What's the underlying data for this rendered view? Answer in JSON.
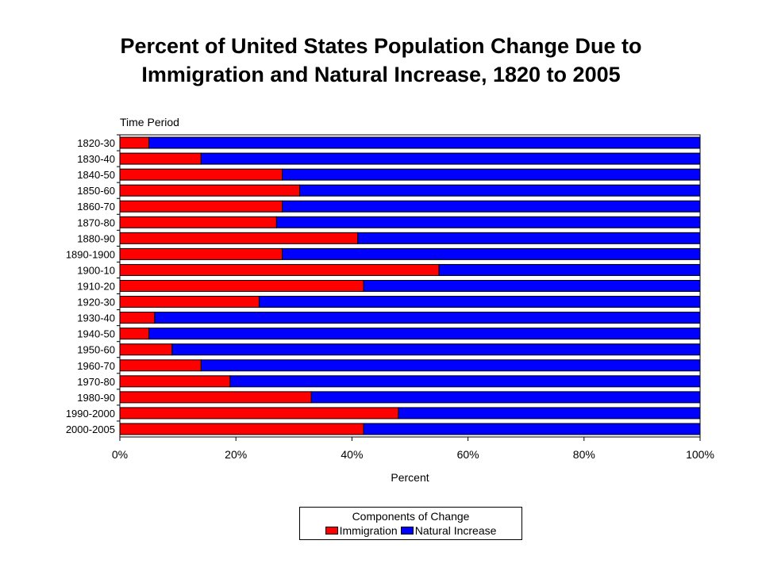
{
  "chart_data": {
    "type": "bar",
    "orientation": "horizontal",
    "stacked": "percent",
    "title_line1": "Percent of United States Population Change Due to",
    "title_line2": "Immigration and Natural Increase, 1820 to 2005",
    "ylabel": "Time Period",
    "xlabel": "Percent",
    "xlim": [
      0,
      100
    ],
    "x_ticks": [
      "0%",
      "20%",
      "40%",
      "60%",
      "80%",
      "100%"
    ],
    "x_tick_values": [
      0,
      20,
      40,
      60,
      80,
      100
    ],
    "grid": false,
    "legend_title": "Components of Change",
    "legend_position": "bottom-center",
    "categories": [
      "1820-30",
      "1830-40",
      "1840-50",
      "1850-60",
      "1860-70",
      "1870-80",
      "1880-90",
      "1890-1900",
      "1900-10",
      "1910-20",
      "1920-30",
      "1930-40",
      "1940-50",
      "1950-60",
      "1960-70",
      "1970-80",
      "1980-90",
      "1990-2000",
      "2000-2005"
    ],
    "series": [
      {
        "name": "Immigration",
        "color": "#ff0000",
        "values": [
          5,
          14,
          28,
          31,
          28,
          27,
          41,
          28,
          55,
          42,
          24,
          6,
          5,
          9,
          14,
          19,
          33,
          48,
          42
        ]
      },
      {
        "name": "Natural Increase",
        "color": "#0000ff",
        "values": [
          95,
          86,
          72,
          69,
          72,
          73,
          59,
          72,
          45,
          58,
          76,
          94,
          95,
          91,
          86,
          81,
          67,
          52,
          58
        ]
      }
    ]
  }
}
